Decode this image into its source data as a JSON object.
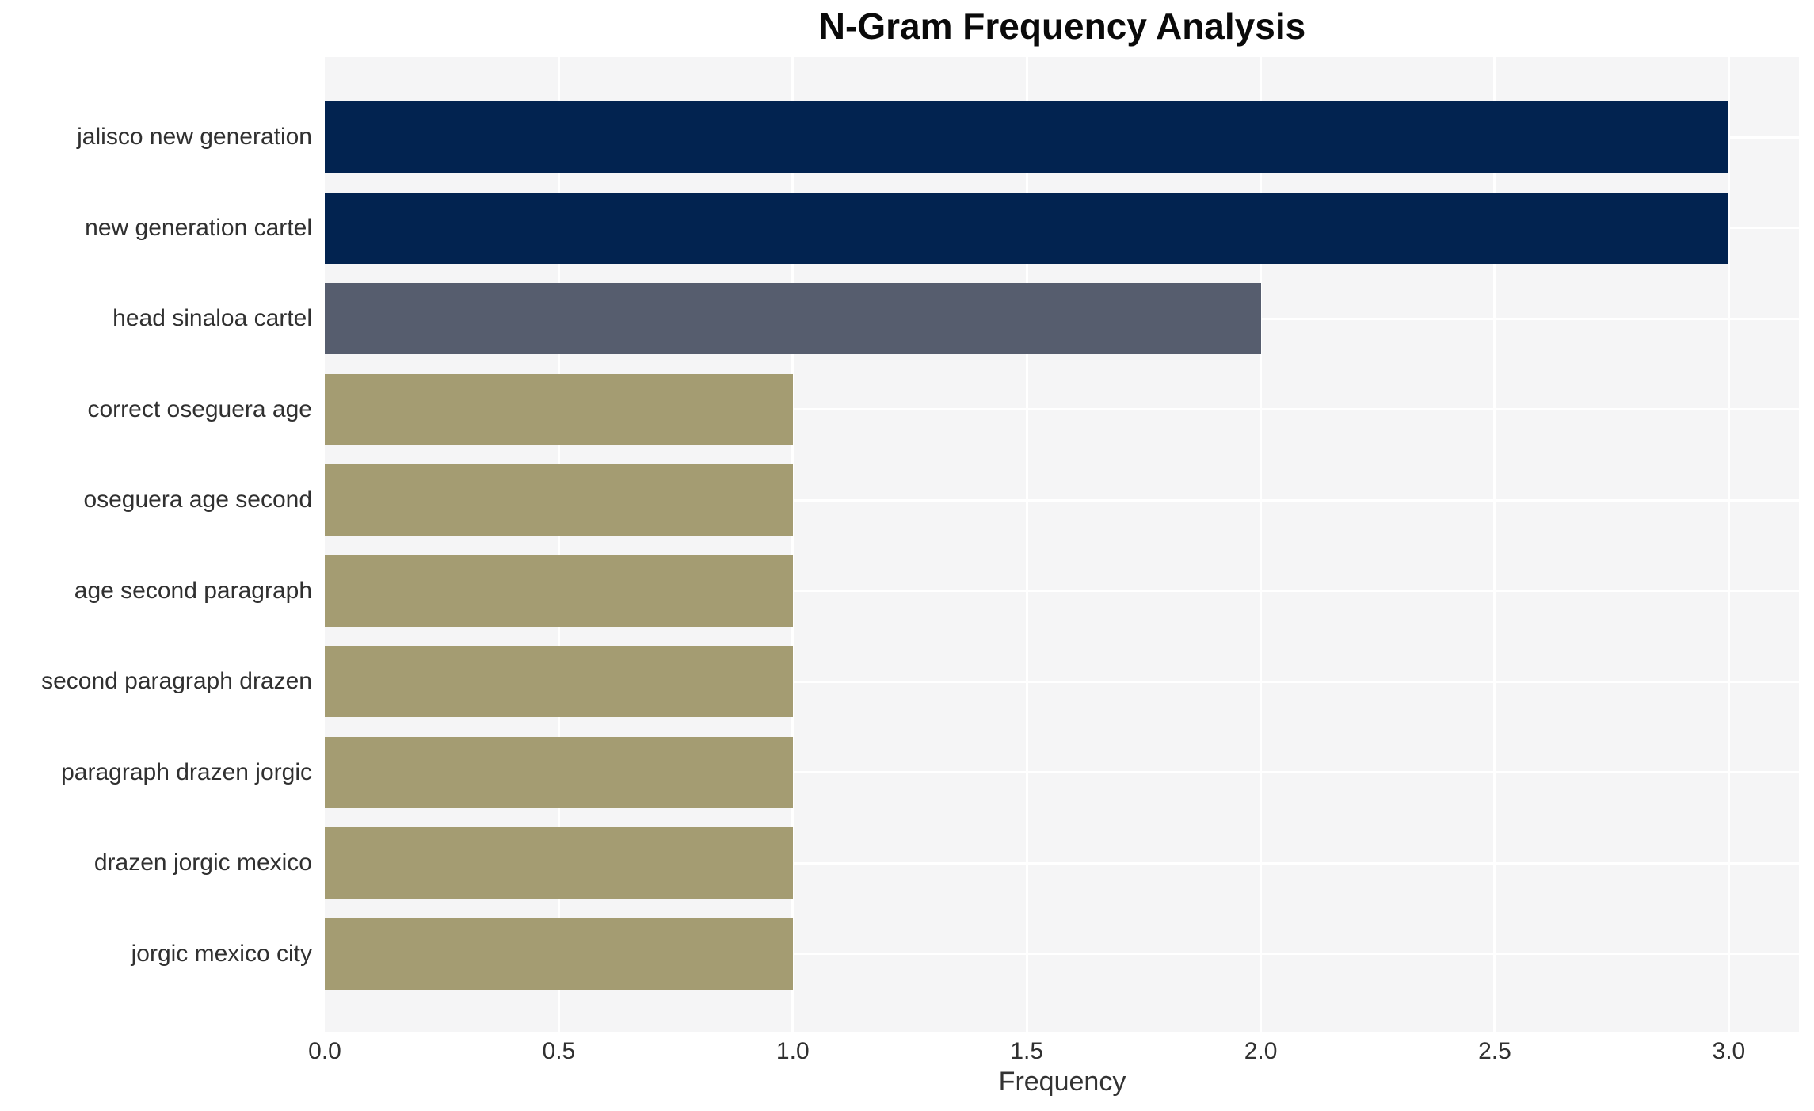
{
  "title": "N-Gram Frequency Analysis",
  "chart_data": {
    "type": "bar",
    "orientation": "horizontal",
    "title": "N-Gram Frequency Analysis",
    "xlabel": "Frequency",
    "ylabel": "",
    "categories": [
      "jalisco new generation",
      "new generation cartel",
      "head sinaloa cartel",
      "correct oseguera age",
      "oseguera age second",
      "age second paragraph",
      "second paragraph drazen",
      "paragraph drazen jorgic",
      "drazen jorgic mexico",
      "jorgic mexico city"
    ],
    "values": [
      3,
      3,
      2,
      1,
      1,
      1,
      1,
      1,
      1,
      1
    ],
    "bar_colors": [
      "#022350",
      "#022350",
      "#565d6e",
      "#a49c72",
      "#a49c72",
      "#a49c72",
      "#a49c72",
      "#a49c72",
      "#a49c72",
      "#a49c72"
    ],
    "xlim": [
      0,
      3.15
    ],
    "xticks": [
      0.0,
      0.5,
      1.0,
      1.5,
      2.0,
      2.5,
      3.0
    ],
    "xtick_labels": [
      "0.0",
      "0.5",
      "1.0",
      "1.5",
      "2.0",
      "2.5",
      "3.0"
    ],
    "grid": true,
    "legend_position": "none",
    "plot_background": "#f5f5f6",
    "grid_color": "#ffffff",
    "figure_background": "#ffffff",
    "text_color": "#303030"
  }
}
